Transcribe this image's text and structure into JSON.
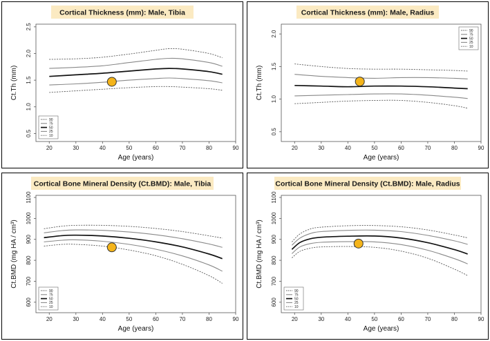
{
  "colors": {
    "title_bg": "#fbeac2",
    "marker_fill": "#f4b41a",
    "marker_stroke": "#333333",
    "p50": "#111111",
    "p25_75": "#888888",
    "p10_90": "#555555"
  },
  "chart_data": [
    {
      "type": "line",
      "title": "Cortical Thickness (mm): Male, Tibia",
      "xlabel": "Age (years)",
      "ylabel": "Ct.Th (mm)",
      "xlim": [
        15,
        90
      ],
      "ylim": [
        0.35,
        2.55
      ],
      "xticks": [
        "20",
        "30",
        "40",
        "50",
        "60",
        "70",
        "80",
        "90"
      ],
      "yticks": [
        "0.5",
        "1.0",
        "1.5",
        "2.0",
        "2.5"
      ],
      "legend_position": "bottom-left",
      "x": [
        20,
        30,
        40,
        50,
        60,
        65,
        70,
        80,
        85
      ],
      "series": [
        {
          "name": "90",
          "values": [
            1.89,
            1.9,
            1.93,
            1.99,
            2.06,
            2.09,
            2.08,
            2.0,
            1.92
          ]
        },
        {
          "name": "75",
          "values": [
            1.72,
            1.74,
            1.77,
            1.83,
            1.89,
            1.91,
            1.9,
            1.83,
            1.76
          ]
        },
        {
          "name": "50",
          "values": [
            1.57,
            1.6,
            1.63,
            1.67,
            1.71,
            1.72,
            1.71,
            1.66,
            1.61
          ]
        },
        {
          "name": "25",
          "values": [
            1.41,
            1.43,
            1.46,
            1.5,
            1.53,
            1.54,
            1.53,
            1.49,
            1.45
          ]
        },
        {
          "name": "10",
          "values": [
            1.27,
            1.3,
            1.33,
            1.36,
            1.38,
            1.38,
            1.37,
            1.34,
            1.31
          ]
        }
      ],
      "subject": {
        "x": 43.5,
        "y": 1.47
      }
    },
    {
      "type": "line",
      "title": "Cortical Thickness (mm): Male, Radius",
      "xlabel": "Age (years)",
      "ylabel": "Ct.Th (mm)",
      "xlim": [
        15,
        90
      ],
      "ylim": [
        0.35,
        2.15
      ],
      "xticks": [
        "20",
        "30",
        "40",
        "50",
        "60",
        "70",
        "80",
        "90"
      ],
      "yticks": [
        "0.5",
        "1.0",
        "1.5",
        "2.0"
      ],
      "legend_position": "top-right",
      "x": [
        20,
        30,
        40,
        50,
        60,
        70,
        80,
        85
      ],
      "series": [
        {
          "name": "90",
          "values": [
            1.54,
            1.5,
            1.47,
            1.46,
            1.46,
            1.45,
            1.44,
            1.43
          ]
        },
        {
          "name": "75",
          "values": [
            1.38,
            1.35,
            1.33,
            1.32,
            1.33,
            1.33,
            1.32,
            1.31
          ]
        },
        {
          "name": "50",
          "values": [
            1.21,
            1.2,
            1.19,
            1.2,
            1.2,
            1.19,
            1.17,
            1.16
          ]
        },
        {
          "name": "25",
          "values": [
            1.05,
            1.06,
            1.07,
            1.08,
            1.08,
            1.06,
            1.03,
            1.01
          ]
        },
        {
          "name": "10",
          "values": [
            0.93,
            0.95,
            0.97,
            0.98,
            0.98,
            0.95,
            0.9,
            0.86
          ]
        }
      ],
      "subject": {
        "x": 44.5,
        "y": 1.27
      }
    },
    {
      "type": "line",
      "title": "Cortical Bone Mineral Density (Ct.BMD): Male, Tibia",
      "xlabel": "Age (years)",
      "ylabel": "Ct.BMD (mg HA / cm³)",
      "xlim": [
        15,
        90
      ],
      "ylim": [
        550,
        1110
      ],
      "xticks": [
        "20",
        "30",
        "40",
        "50",
        "60",
        "70",
        "80",
        "90"
      ],
      "yticks": [
        "600",
        "700",
        "800",
        "900",
        "1000",
        "1100"
      ],
      "legend_position": "bottom-left",
      "x": [
        18,
        25,
        30,
        40,
        50,
        60,
        70,
        80,
        85
      ],
      "series": [
        {
          "name": "90",
          "values": [
            951,
            963,
            967,
            967,
            962,
            952,
            937,
            917,
            906
          ]
        },
        {
          "name": "75",
          "values": [
            931,
            942,
            945,
            943,
            935,
            922,
            903,
            878,
            862
          ]
        },
        {
          "name": "50",
          "values": [
            908,
            918,
            920,
            916,
            905,
            888,
            864,
            830,
            808
          ]
        },
        {
          "name": "25",
          "values": [
            888,
            896,
            898,
            891,
            876,
            853,
            821,
            778,
            748
          ]
        },
        {
          "name": "10",
          "values": [
            868,
            876,
            876,
            868,
            849,
            822,
            781,
            727,
            690
          ]
        }
      ],
      "subject": {
        "x": 43.5,
        "y": 862
      }
    },
    {
      "type": "line",
      "title": "Cortical Bone Mineral Density (Ct.BMD): Male, Radius",
      "xlabel": "Age (years)",
      "ylabel": "Ct.BMD (mg HA / cm³)",
      "xlim": [
        15,
        90
      ],
      "ylim": [
        550,
        1110
      ],
      "xticks": [
        "20",
        "30",
        "40",
        "50",
        "60",
        "70",
        "80",
        "90"
      ],
      "yticks": [
        "600",
        "700",
        "800",
        "900",
        "1000",
        "1100"
      ],
      "legend_position": "bottom-left",
      "x": [
        19,
        22,
        26,
        30,
        40,
        50,
        60,
        70,
        80,
        85
      ],
      "series": [
        {
          "name": "90",
          "values": [
            888,
            926,
            950,
            958,
            965,
            966,
            960,
            945,
            921,
            907
          ]
        },
        {
          "name": "75",
          "values": [
            872,
            906,
            928,
            937,
            943,
            944,
            937,
            919,
            893,
            876
          ]
        },
        {
          "name": "50",
          "values": [
            852,
            885,
            903,
            910,
            915,
            916,
            906,
            884,
            851,
            830
          ]
        },
        {
          "name": "25",
          "values": [
            832,
            864,
            880,
            886,
            889,
            888,
            875,
            848,
            808,
            783
          ]
        },
        {
          "name": "10",
          "values": [
            812,
            843,
            858,
            864,
            866,
            862,
            844,
            810,
            758,
            727
          ]
        }
      ],
      "subject": {
        "x": 44,
        "y": 880
      }
    }
  ]
}
